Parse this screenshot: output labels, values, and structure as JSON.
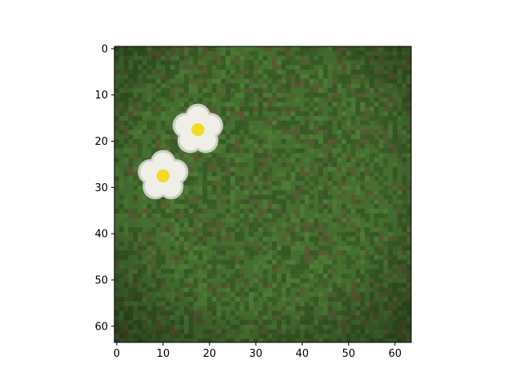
{
  "image_plot": {
    "grid": "off",
    "colors": {
      "grass_dark": "#2b4a1c",
      "grass_mid": "#3f6a2b",
      "grass_light": "#4d7a35",
      "soil_brown": "#5a4a30",
      "petal_white": "#efefe8",
      "petal_shadow": "#c9cfc2",
      "flower_center": "#f0dc28"
    },
    "x_ticks": [
      {
        "value": 0,
        "label": "0"
      },
      {
        "value": 10,
        "label": "10"
      },
      {
        "value": 20,
        "label": "20"
      },
      {
        "value": 30,
        "label": "30"
      },
      {
        "value": 40,
        "label": "40"
      },
      {
        "value": 50,
        "label": "50"
      },
      {
        "value": 60,
        "label": "60"
      }
    ],
    "y_ticks": [
      {
        "value": 0,
        "label": "0"
      },
      {
        "value": 10,
        "label": "10"
      },
      {
        "value": 20,
        "label": "20"
      },
      {
        "value": 30,
        "label": "30"
      },
      {
        "value": 40,
        "label": "40"
      },
      {
        "value": 50,
        "label": "50"
      },
      {
        "value": 60,
        "label": "60"
      }
    ],
    "x_range": [
      -0.5,
      63.5
    ],
    "y_range": [
      63.5,
      -0.5
    ],
    "flowers": [
      {
        "name": "upper-flower",
        "center_x": 17.5,
        "center_y": 17.5
      },
      {
        "name": "lower-flower",
        "center_x": 10,
        "center_y": 27.5
      }
    ]
  }
}
